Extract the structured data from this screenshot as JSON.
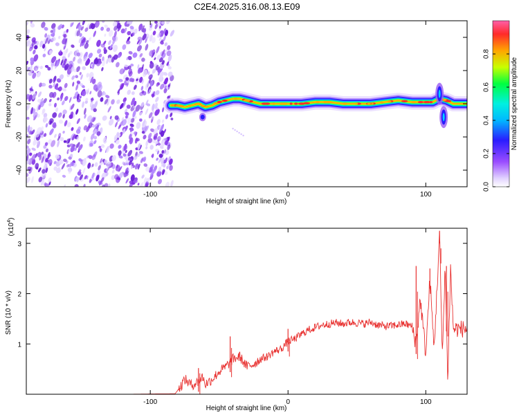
{
  "title": "C2E4.2025.316.08.13.E09",
  "colors": {
    "snr_line": "#e8302f",
    "noise": "#8a2be2",
    "frame": "#000000"
  },
  "chart_data": [
    {
      "type": "heatmap",
      "name": "spectrogram",
      "xlabel": "Height of straight line (km)",
      "ylabel": "Frequency (Hz)",
      "xlim": [
        -190,
        130
      ],
      "ylim": [
        -50,
        50
      ],
      "xticks": [
        -100,
        0,
        100
      ],
      "yticks": [
        -40,
        -20,
        0,
        20,
        40
      ],
      "colorbar": {
        "label": "Normalized spectral amplitude",
        "range": [
          0,
          1
        ],
        "ticks": [
          "0.0",
          "0.2",
          "0.4",
          "0.6",
          "0.8"
        ],
        "colormap": [
          "#e2d3ff",
          "#8a2be2",
          "#2a1cff",
          "#00e0ff",
          "#00ff80",
          "#c8ff00",
          "#ffa500",
          "#ff2a2a",
          "#ff66aa"
        ]
      },
      "noise_region_x": [
        -190,
        -84
      ],
      "signal_track": {
        "x": [
          -85,
          -80,
          -75,
          -70,
          -65,
          -60,
          -55,
          -50,
          -45,
          -40,
          -35,
          -30,
          -25,
          -20,
          -10,
          0,
          10,
          20,
          30,
          40,
          50,
          60,
          70,
          80,
          90,
          100,
          105,
          110,
          115,
          120,
          130
        ],
        "freq": [
          -1,
          -1,
          -2,
          -1,
          0,
          -2,
          -1,
          1,
          2,
          3,
          3,
          2,
          1,
          0,
          0,
          0,
          0,
          1,
          1,
          0,
          0,
          0,
          1,
          2,
          1,
          1,
          1,
          3,
          2,
          0,
          0
        ]
      },
      "bursts": [
        {
          "x": -62,
          "freq": -8
        },
        {
          "x": -40,
          "freq": -15
        },
        {
          "x": 110,
          "freq": 6
        },
        {
          "x": 113,
          "freq": -8
        }
      ]
    },
    {
      "type": "line",
      "name": "snr",
      "xlabel": "Height of straight line (km)",
      "ylabel": "SNR (10 * v/v)",
      "multiplier": "(x10",
      "multiplier_exp": "4",
      "xlim": [
        -190,
        130
      ],
      "ylim": [
        0,
        3.3
      ],
      "xticks": [
        -100,
        0,
        100
      ],
      "yticks": [
        1,
        2,
        3
      ],
      "series": [
        {
          "x": [
            -190,
            -120,
            -82,
            -78,
            -75,
            -70,
            -65,
            -62,
            -60,
            -55,
            -50,
            -45,
            -40,
            -35,
            -30,
            -25,
            -20,
            -15,
            -10,
            -5,
            0,
            5,
            10,
            15,
            20,
            25,
            30,
            35,
            40,
            45,
            50,
            55,
            60,
            65,
            70,
            75,
            80,
            85,
            90,
            93,
            96,
            100,
            103,
            106,
            108,
            110,
            112,
            114,
            116,
            118,
            120,
            125,
            130
          ],
          "values": [
            0.0,
            0.0,
            0.01,
            0.15,
            0.3,
            0.18,
            0.25,
            0.35,
            0.2,
            0.3,
            0.45,
            0.55,
            0.7,
            0.75,
            0.55,
            0.6,
            0.7,
            0.75,
            0.85,
            0.9,
            1.05,
            1.1,
            1.2,
            1.28,
            1.33,
            1.38,
            1.4,
            1.42,
            1.4,
            1.43,
            1.42,
            1.4,
            1.43,
            1.38,
            1.35,
            1.36,
            1.38,
            1.4,
            1.35,
            1.0,
            1.9,
            0.8,
            2.3,
            0.9,
            2.0,
            3.2,
            0.7,
            2.6,
            0.3,
            2.5,
            1.3,
            1.3,
            1.3
          ]
        }
      ],
      "spikes": [
        {
          "x": -65,
          "y": 0.52
        },
        {
          "x": -42,
          "y": 1.15
        },
        {
          "x": 0,
          "y": 1.3
        },
        {
          "x": 93,
          "y": 2.55
        },
        {
          "x": 103,
          "y": 2.5
        },
        {
          "x": 110,
          "y": 3.25
        },
        {
          "x": 115,
          "y": 2.55
        }
      ]
    }
  ]
}
